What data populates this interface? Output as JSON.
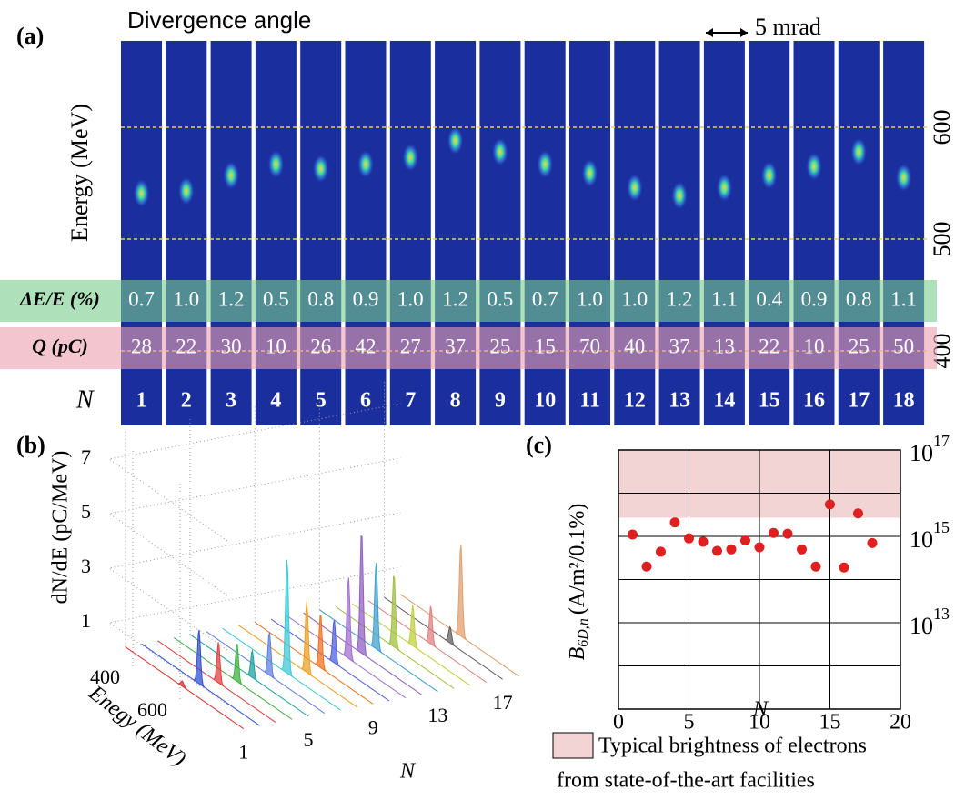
{
  "panel_a": {
    "label": "(a)",
    "title": "Divergence angle",
    "scale_bar": "5 mrad",
    "axis_label": "Energy (MeV)",
    "energy_ticks": [
      600,
      500,
      400
    ],
    "rows": [
      {
        "label": "ΔE/E (%)",
        "values": [
          "0.7",
          "1.0",
          "1.2",
          "0.5",
          "0.8",
          "0.9",
          "1.0",
          "1.2",
          "0.5",
          "0.7",
          "1.0",
          "1.0",
          "1.2",
          "1.1",
          "0.4",
          "0.9",
          "0.8",
          "1.1"
        ]
      },
      {
        "label": "Q (pC)",
        "values": [
          "28",
          "22",
          "30",
          "10",
          "26",
          "42",
          "27",
          "37",
          "25",
          "15",
          "70",
          "40",
          "37",
          "13",
          "22",
          "10",
          "25",
          "50"
        ]
      }
    ],
    "n_label": "N",
    "n_values": [
      "1",
      "2",
      "3",
      "4",
      "5",
      "6",
      "7",
      "8",
      "9",
      "10",
      "11",
      "12",
      "13",
      "14",
      "15",
      "16",
      "17",
      "18"
    ]
  },
  "chart_data": [
    {
      "type": "waterfall",
      "label": "(b)",
      "zlabel": "dN/dE (pC/MeV)",
      "elabel": "Enegy (MeV)",
      "xlabel": "N",
      "categories": [
        1,
        2,
        3,
        4,
        5,
        6,
        7,
        8,
        9,
        10,
        11,
        12,
        13,
        14,
        15,
        16,
        17,
        18
      ],
      "values": [
        0.2,
        2.0,
        1.5,
        1.4,
        1.0,
        1.6,
        4.2,
        2.6,
        2.0,
        1.6,
        3.0,
        4.5,
        3.2,
        2.7,
        1.5,
        1.4,
        0.6,
        3.4
      ],
      "peak_energy": [
        541,
        543,
        557,
        567,
        563,
        567,
        573,
        588,
        578,
        567,
        559,
        546,
        539,
        546,
        557,
        565,
        578,
        555
      ],
      "colors": [
        "#e03030",
        "#3050d0",
        "#e04040",
        "#40b040",
        "#20a0a0",
        "#6080e0",
        "#40c8d8",
        "#f0a020",
        "#f07020",
        "#5060e0",
        "#a070d0",
        "#9060c0",
        "#40a0d0",
        "#a0c040",
        "#c0d040",
        "#e08080",
        "#606060",
        "#e0a070"
      ],
      "xticks": [
        1,
        5,
        9,
        13,
        17
      ],
      "elim": [
        300,
        800
      ],
      "eticks": [
        400,
        600
      ],
      "zlim": [
        0,
        8
      ],
      "zticks": [
        1,
        3,
        5,
        7
      ]
    },
    {
      "type": "scatter",
      "label": "(c)",
      "xlabel": "N",
      "ylabel": {
        "symbol": "B",
        "subscript": "6D,n",
        "unit": "(A/m²/0.1%)"
      },
      "x": [
        1,
        2,
        3,
        4,
        5,
        6,
        7,
        8,
        9,
        10,
        11,
        12,
        13,
        14,
        15,
        16,
        17,
        18
      ],
      "y": [
        1100000000000000.0,
        200000000000000.0,
        440000000000000.0,
        2100000000000000.0,
        900000000000000.0,
        750000000000000.0,
        460000000000000.0,
        500000000000000.0,
        800000000000000.0,
        560000000000000.0,
        1200000000000000.0,
        1150000000000000.0,
        500000000000000.0,
        200000000000000.0,
        5500000000000000.0,
        190000000000000.0,
        3400000000000000.0,
        700000000000000.0
      ],
      "color": "#e02020",
      "log_y": true,
      "xlim": [
        0,
        20
      ],
      "xticks": [
        0,
        5,
        10,
        15,
        20
      ],
      "ylim": [
        100000000000.0,
        1e+17
      ],
      "yticks": [
        {
          "value": 10000000000000.0,
          "label": "10^13"
        },
        {
          "value": 1000000000000000.0,
          "label": "10^15"
        },
        {
          "value": 1e+17,
          "label": "10^17"
        }
      ],
      "ygrid": [
        1000000000000.0,
        10000000000000.0,
        100000000000000.0,
        1000000000000000.0,
        1e+16
      ],
      "band": [
        2700000000000000.0,
        1e+17
      ],
      "band_color": "#f2d4d4",
      "band_legend": [
        "Typical brightness of electrons",
        "from state-of-the-art facilities"
      ]
    }
  ]
}
